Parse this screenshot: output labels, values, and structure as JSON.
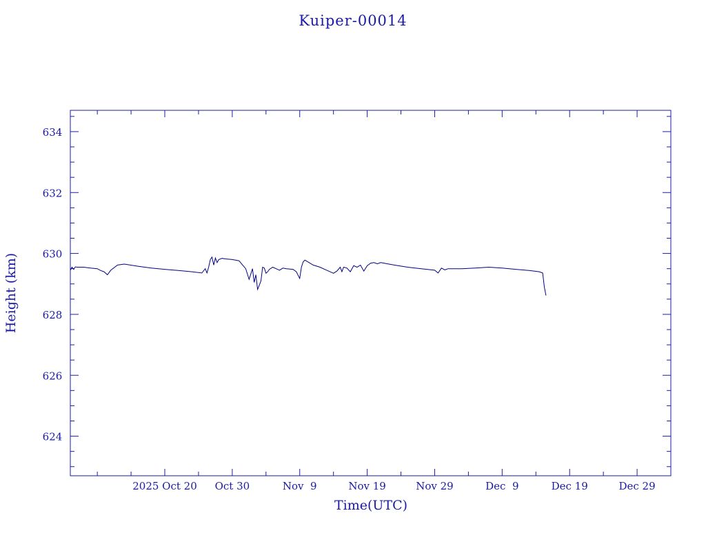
{
  "chart_data": {
    "type": "line",
    "title": "Kuiper-00014",
    "xlabel": "Time(UTC)",
    "ylabel": "Height (km)",
    "ylim": [
      622.7,
      634.7
    ],
    "xlim": [
      "2025-10-06",
      "2026-01-03"
    ],
    "x_tick_labels": [
      "2025 Oct 20",
      "Oct 30",
      "Nov  9",
      "Nov 19",
      "Nov 29",
      "Dec  9",
      "Dec 19",
      "Dec 29"
    ],
    "y_tick_labels": [
      "624",
      "626",
      "628",
      "630",
      "632",
      "634"
    ],
    "grid": false,
    "colors": {
      "axis": "#1a1aa6",
      "line": "#000080"
    },
    "series": [
      {
        "x": [
          "2025-10-06T00:00",
          "2025-10-06T06:00",
          "2025-10-06T12:00",
          "2025-10-06T18:00",
          "2025-10-07T00:00",
          "2025-10-08T00:00",
          "2025-10-09T00:00",
          "2025-10-10T00:00",
          "2025-10-10T12:00",
          "2025-10-11T00:00",
          "2025-10-11T12:00",
          "2025-10-12T00:00",
          "2025-10-13T00:00",
          "2025-10-14T00:00",
          "2025-10-16T00:00",
          "2025-10-18T00:00",
          "2025-10-20T00:00",
          "2025-10-22T00:00",
          "2025-10-24T00:00",
          "2025-10-25T12:00",
          "2025-10-26T00:00",
          "2025-10-26T06:00",
          "2025-10-26T12:00",
          "2025-10-26T18:00",
          "2025-10-27T00:00",
          "2025-10-27T06:00",
          "2025-10-27T12:00",
          "2025-10-27T18:00",
          "2025-10-28T00:00",
          "2025-10-28T12:00",
          "2025-10-29T00:00",
          "2025-10-30T00:00",
          "2025-10-31T00:00",
          "2025-11-01T00:00",
          "2025-11-01T12:00",
          "2025-11-02T00:00",
          "2025-11-02T06:00",
          "2025-11-02T12:00",
          "2025-11-02T18:00",
          "2025-11-03T00:00",
          "2025-11-03T06:00",
          "2025-11-03T12:00",
          "2025-11-03T18:00",
          "2025-11-04T00:00",
          "2025-11-04T06:00",
          "2025-11-04T12:00",
          "2025-11-05T00:00",
          "2025-11-05T12:00",
          "2025-11-06T00:00",
          "2025-11-06T12:00",
          "2025-11-07T00:00",
          "2025-11-08T00:00",
          "2025-11-08T12:00",
          "2025-11-09T00:00",
          "2025-11-09T06:00",
          "2025-11-09T12:00",
          "2025-11-09T18:00",
          "2025-11-10T00:00",
          "2025-11-11T00:00",
          "2025-11-12T00:00",
          "2025-11-13T00:00",
          "2025-11-14T00:00",
          "2025-11-14T12:00",
          "2025-11-15T00:00",
          "2025-11-15T06:00",
          "2025-11-15T12:00",
          "2025-11-16T00:00",
          "2025-11-16T12:00",
          "2025-11-17T00:00",
          "2025-11-17T12:00",
          "2025-11-18T00:00",
          "2025-11-18T12:00",
          "2025-11-19T00:00",
          "2025-11-19T12:00",
          "2025-11-20T00:00",
          "2025-11-20T12:00",
          "2025-11-21T00:00",
          "2025-11-22T00:00",
          "2025-11-23T00:00",
          "2025-11-25T00:00",
          "2025-11-27T00:00",
          "2025-11-29T00:00",
          "2025-11-29T12:00",
          "2025-11-30T00:00",
          "2025-11-30T12:00",
          "2025-12-01T00:00",
          "2025-12-03T00:00",
          "2025-12-05T00:00",
          "2025-12-07T00:00",
          "2025-12-09T00:00",
          "2025-12-11T00:00",
          "2025-12-13T00:00",
          "2025-12-14T12:00",
          "2025-12-15T00:00",
          "2025-12-15T06:00",
          "2025-12-15T12:00"
        ],
        "y": [
          629.45,
          629.55,
          629.48,
          629.56,
          629.55,
          629.55,
          629.52,
          629.5,
          629.44,
          629.4,
          629.3,
          629.45,
          629.62,
          629.65,
          629.58,
          629.52,
          629.48,
          629.44,
          629.4,
          629.36,
          629.5,
          629.36,
          629.55,
          629.8,
          629.88,
          629.62,
          629.85,
          629.7,
          629.8,
          629.84,
          629.82,
          629.8,
          629.76,
          629.5,
          629.15,
          629.5,
          629.05,
          629.3,
          628.82,
          628.95,
          629.1,
          629.55,
          629.52,
          629.35,
          629.4,
          629.48,
          629.55,
          629.5,
          629.45,
          629.52,
          629.5,
          629.48,
          629.4,
          629.18,
          629.55,
          629.72,
          629.78,
          629.75,
          629.62,
          629.55,
          629.45,
          629.35,
          629.42,
          629.55,
          629.4,
          629.55,
          629.52,
          629.4,
          629.6,
          629.55,
          629.62,
          629.42,
          629.6,
          629.68,
          629.7,
          629.66,
          629.7,
          629.66,
          629.62,
          629.55,
          629.5,
          629.45,
          629.36,
          629.52,
          629.46,
          629.5,
          629.5,
          629.52,
          629.55,
          629.52,
          629.48,
          629.44,
          629.4,
          629.36,
          628.9,
          628.62
        ]
      }
    ]
  }
}
